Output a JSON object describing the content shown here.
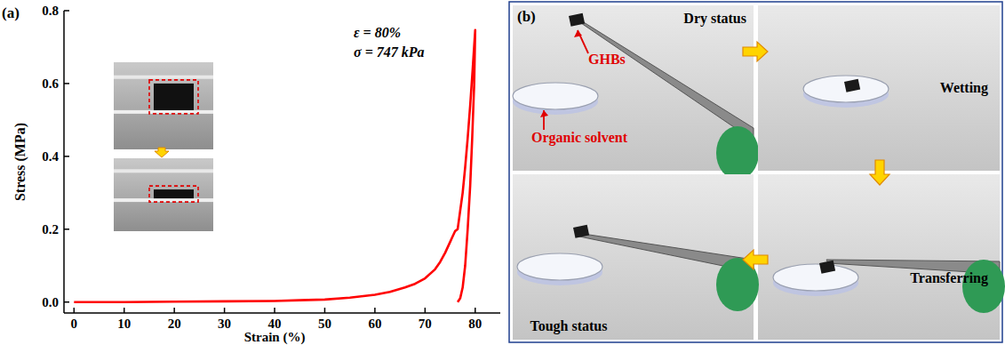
{
  "chart_data": {
    "type": "line",
    "panel_label": "(a)",
    "x_label": "Strain (%)",
    "y_label": "Stress (MPa)",
    "xlim": [
      -2,
      85
    ],
    "xticks": [
      0,
      10,
      20,
      30,
      40,
      50,
      60,
      70,
      80
    ],
    "ylim": [
      -0.03,
      0.8
    ],
    "yticks": [
      {
        "value": 0,
        "label": "0.0"
      },
      {
        "value": 0.2,
        "label": "0.2"
      },
      {
        "value": 0.4,
        "label": "0.4"
      },
      {
        "value": 0.6,
        "label": "0.6"
      },
      {
        "value": 0.8,
        "label": "0.8"
      }
    ],
    "annotations": [
      "ε = 80%",
      "σ = 747 kPa"
    ],
    "x": [
      0,
      10,
      20,
      30,
      40,
      45,
      50,
      55,
      60,
      63,
      66,
      68,
      70,
      72,
      73,
      74,
      75,
      76,
      76.5,
      77,
      77.5,
      78,
      78.5,
      79,
      79.5,
      80,
      79.8,
      79.4,
      79,
      78.5,
      78,
      77.5,
      77,
      76.5
    ],
    "series": [
      {
        "color": "#ff0000",
        "line_style": "solid",
        "values": [
          0,
          0,
          0.001,
          0.002,
          0.003,
          0.005,
          0.007,
          0.012,
          0.02,
          0.028,
          0.04,
          0.05,
          0.065,
          0.09,
          0.11,
          0.135,
          0.165,
          0.195,
          0.2,
          0.25,
          0.3,
          0.37,
          0.45,
          0.54,
          0.64,
          0.747,
          0.6,
          0.45,
          0.32,
          0.2,
          0.1,
          0.04,
          0.01,
          0
        ]
      }
    ]
  },
  "photo_panel": {
    "panel_label": "(b)",
    "photos": [
      {
        "caption": "Dry status",
        "callouts": [
          "GHBs",
          "Organic solvent"
        ]
      },
      {
        "caption": "Wetting"
      },
      {
        "caption": "Transferring"
      },
      {
        "caption": "Tough status"
      }
    ]
  }
}
